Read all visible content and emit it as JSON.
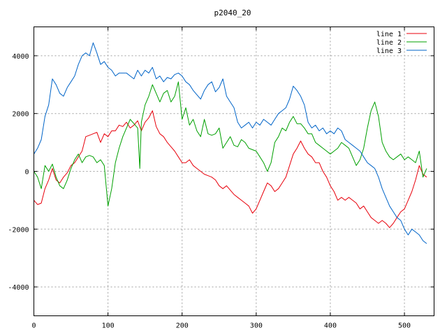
{
  "chart_data": {
    "type": "line",
    "title": "p2040_20",
    "xlabel": "",
    "ylabel": "",
    "xlim": [
      0,
      540
    ],
    "ylim": [
      -5000,
      5000
    ],
    "xticks": [
      0,
      100,
      200,
      300,
      400,
      500
    ],
    "yticks": [
      -4000,
      -2000,
      0,
      2000,
      4000
    ],
    "grid": true,
    "legend_position": "top-right",
    "series": [
      {
        "name": "line 1",
        "color": "#e8000b",
        "points": [
          [
            0,
            -1000
          ],
          [
            5,
            -1150
          ],
          [
            10,
            -1100
          ],
          [
            15,
            -600
          ],
          [
            20,
            -300
          ],
          [
            25,
            100
          ],
          [
            30,
            -300
          ],
          [
            35,
            -400
          ],
          [
            40,
            -200
          ],
          [
            45,
            -50
          ],
          [
            50,
            200
          ],
          [
            55,
            300
          ],
          [
            60,
            500
          ],
          [
            65,
            700
          ],
          [
            70,
            1200
          ],
          [
            75,
            1250
          ],
          [
            80,
            1300
          ],
          [
            85,
            1350
          ],
          [
            90,
            1000
          ],
          [
            95,
            1300
          ],
          [
            100,
            1200
          ],
          [
            105,
            1400
          ],
          [
            110,
            1400
          ],
          [
            115,
            1600
          ],
          [
            120,
            1550
          ],
          [
            125,
            1700
          ],
          [
            130,
            1500
          ],
          [
            135,
            1600
          ],
          [
            140,
            1750
          ],
          [
            145,
            1400
          ],
          [
            150,
            1700
          ],
          [
            155,
            1850
          ],
          [
            160,
            2100
          ],
          [
            165,
            1550
          ],
          [
            170,
            1300
          ],
          [
            175,
            1200
          ],
          [
            180,
            1000
          ],
          [
            185,
            850
          ],
          [
            190,
            700
          ],
          [
            195,
            500
          ],
          [
            200,
            300
          ],
          [
            205,
            300
          ],
          [
            210,
            400
          ],
          [
            215,
            200
          ],
          [
            220,
            100
          ],
          [
            225,
            0
          ],
          [
            230,
            -100
          ],
          [
            235,
            -150
          ],
          [
            240,
            -200
          ],
          [
            245,
            -300
          ],
          [
            250,
            -500
          ],
          [
            255,
            -600
          ],
          [
            260,
            -500
          ],
          [
            265,
            -650
          ],
          [
            270,
            -800
          ],
          [
            275,
            -900
          ],
          [
            280,
            -1000
          ],
          [
            285,
            -1100
          ],
          [
            290,
            -1200
          ],
          [
            295,
            -1450
          ],
          [
            300,
            -1300
          ],
          [
            305,
            -1000
          ],
          [
            310,
            -700
          ],
          [
            315,
            -400
          ],
          [
            320,
            -500
          ],
          [
            325,
            -700
          ],
          [
            330,
            -600
          ],
          [
            335,
            -400
          ],
          [
            340,
            -200
          ],
          [
            345,
            200
          ],
          [
            350,
            600
          ],
          [
            355,
            800
          ],
          [
            360,
            1050
          ],
          [
            365,
            800
          ],
          [
            370,
            600
          ],
          [
            375,
            500
          ],
          [
            380,
            300
          ],
          [
            385,
            300
          ],
          [
            390,
            0
          ],
          [
            395,
            -200
          ],
          [
            400,
            -500
          ],
          [
            405,
            -700
          ],
          [
            410,
            -1000
          ],
          [
            415,
            -900
          ],
          [
            420,
            -1000
          ],
          [
            425,
            -900
          ],
          [
            430,
            -1000
          ],
          [
            435,
            -1100
          ],
          [
            440,
            -1300
          ],
          [
            445,
            -1200
          ],
          [
            450,
            -1400
          ],
          [
            455,
            -1600
          ],
          [
            460,
            -1700
          ],
          [
            465,
            -1800
          ],
          [
            470,
            -1700
          ],
          [
            475,
            -1800
          ],
          [
            480,
            -1950
          ],
          [
            485,
            -1800
          ],
          [
            490,
            -1600
          ],
          [
            495,
            -1400
          ],
          [
            500,
            -1300
          ],
          [
            505,
            -1000
          ],
          [
            510,
            -700
          ],
          [
            515,
            -300
          ],
          [
            520,
            200
          ],
          [
            525,
            -100
          ],
          [
            530,
            -200
          ]
        ]
      },
      {
        "name": "line 2",
        "color": "#00a000",
        "points": [
          [
            0,
            0
          ],
          [
            5,
            -200
          ],
          [
            10,
            -600
          ],
          [
            15,
            200
          ],
          [
            20,
            0
          ],
          [
            25,
            250
          ],
          [
            30,
            -200
          ],
          [
            35,
            -500
          ],
          [
            40,
            -600
          ],
          [
            45,
            -300
          ],
          [
            50,
            100
          ],
          [
            55,
            400
          ],
          [
            60,
            600
          ],
          [
            65,
            300
          ],
          [
            70,
            500
          ],
          [
            75,
            550
          ],
          [
            80,
            500
          ],
          [
            85,
            300
          ],
          [
            90,
            400
          ],
          [
            95,
            200
          ],
          [
            100,
            -1200
          ],
          [
            105,
            -600
          ],
          [
            110,
            300
          ],
          [
            115,
            800
          ],
          [
            120,
            1200
          ],
          [
            125,
            1500
          ],
          [
            130,
            1800
          ],
          [
            135,
            1650
          ],
          [
            140,
            1500
          ],
          [
            143,
            100
          ],
          [
            145,
            1700
          ],
          [
            150,
            2300
          ],
          [
            155,
            2600
          ],
          [
            160,
            3000
          ],
          [
            165,
            2700
          ],
          [
            170,
            2400
          ],
          [
            175,
            2700
          ],
          [
            180,
            2800
          ],
          [
            185,
            2400
          ],
          [
            190,
            2600
          ],
          [
            195,
            3100
          ],
          [
            200,
            1800
          ],
          [
            205,
            2200
          ],
          [
            210,
            1600
          ],
          [
            215,
            1800
          ],
          [
            220,
            1400
          ],
          [
            225,
            1200
          ],
          [
            230,
            1800
          ],
          [
            235,
            1300
          ],
          [
            240,
            1250
          ],
          [
            245,
            1300
          ],
          [
            250,
            1500
          ],
          [
            255,
            800
          ],
          [
            260,
            1000
          ],
          [
            265,
            1200
          ],
          [
            270,
            900
          ],
          [
            275,
            850
          ],
          [
            280,
            1100
          ],
          [
            285,
            1000
          ],
          [
            290,
            800
          ],
          [
            295,
            750
          ],
          [
            300,
            700
          ],
          [
            305,
            500
          ],
          [
            310,
            300
          ],
          [
            315,
            0
          ],
          [
            320,
            300
          ],
          [
            325,
            1000
          ],
          [
            330,
            1200
          ],
          [
            335,
            1500
          ],
          [
            340,
            1400
          ],
          [
            345,
            1700
          ],
          [
            350,
            1900
          ],
          [
            355,
            1650
          ],
          [
            360,
            1650
          ],
          [
            365,
            1500
          ],
          [
            370,
            1300
          ],
          [
            375,
            1300
          ],
          [
            380,
            1000
          ],
          [
            385,
            900
          ],
          [
            390,
            800
          ],
          [
            395,
            700
          ],
          [
            400,
            600
          ],
          [
            405,
            700
          ],
          [
            410,
            800
          ],
          [
            415,
            1000
          ],
          [
            420,
            900
          ],
          [
            425,
            800
          ],
          [
            430,
            500
          ],
          [
            435,
            200
          ],
          [
            440,
            400
          ],
          [
            445,
            800
          ],
          [
            450,
            1500
          ],
          [
            455,
            2100
          ],
          [
            460,
            2400
          ],
          [
            465,
            1900
          ],
          [
            470,
            1000
          ],
          [
            475,
            700
          ],
          [
            480,
            500
          ],
          [
            485,
            400
          ],
          [
            490,
            500
          ],
          [
            495,
            600
          ],
          [
            500,
            400
          ],
          [
            505,
            500
          ],
          [
            510,
            400
          ],
          [
            515,
            300
          ],
          [
            520,
            700
          ],
          [
            525,
            -200
          ],
          [
            530,
            100
          ]
        ]
      },
      {
        "name": "line 3",
        "color": "#0064c8",
        "points": [
          [
            0,
            600
          ],
          [
            5,
            800
          ],
          [
            10,
            1100
          ],
          [
            15,
            1900
          ],
          [
            20,
            2300
          ],
          [
            25,
            3200
          ],
          [
            30,
            3000
          ],
          [
            35,
            2700
          ],
          [
            40,
            2600
          ],
          [
            45,
            2900
          ],
          [
            50,
            3100
          ],
          [
            55,
            3300
          ],
          [
            60,
            3700
          ],
          [
            65,
            4000
          ],
          [
            70,
            4100
          ],
          [
            75,
            4000
          ],
          [
            80,
            4450
          ],
          [
            85,
            4100
          ],
          [
            90,
            3700
          ],
          [
            95,
            3800
          ],
          [
            100,
            3600
          ],
          [
            105,
            3500
          ],
          [
            110,
            3300
          ],
          [
            115,
            3400
          ],
          [
            120,
            3400
          ],
          [
            125,
            3400
          ],
          [
            130,
            3300
          ],
          [
            135,
            3200
          ],
          [
            140,
            3500
          ],
          [
            145,
            3300
          ],
          [
            150,
            3500
          ],
          [
            155,
            3400
          ],
          [
            160,
            3600
          ],
          [
            165,
            3200
          ],
          [
            170,
            3300
          ],
          [
            175,
            3100
          ],
          [
            180,
            3250
          ],
          [
            185,
            3200
          ],
          [
            190,
            3350
          ],
          [
            195,
            3400
          ],
          [
            200,
            3300
          ],
          [
            205,
            3100
          ],
          [
            210,
            3000
          ],
          [
            215,
            2800
          ],
          [
            220,
            2650
          ],
          [
            225,
            2500
          ],
          [
            230,
            2800
          ],
          [
            235,
            3000
          ],
          [
            240,
            3100
          ],
          [
            245,
            2750
          ],
          [
            250,
            2900
          ],
          [
            255,
            3200
          ],
          [
            260,
            2600
          ],
          [
            265,
            2400
          ],
          [
            270,
            2200
          ],
          [
            275,
            1700
          ],
          [
            280,
            1500
          ],
          [
            285,
            1600
          ],
          [
            290,
            1700
          ],
          [
            295,
            1500
          ],
          [
            300,
            1700
          ],
          [
            305,
            1600
          ],
          [
            310,
            1800
          ],
          [
            315,
            1700
          ],
          [
            320,
            1600
          ],
          [
            325,
            1800
          ],
          [
            330,
            2000
          ],
          [
            335,
            2100
          ],
          [
            340,
            2200
          ],
          [
            345,
            2500
          ],
          [
            350,
            2950
          ],
          [
            355,
            2800
          ],
          [
            360,
            2600
          ],
          [
            365,
            2300
          ],
          [
            370,
            1700
          ],
          [
            375,
            1500
          ],
          [
            380,
            1600
          ],
          [
            385,
            1400
          ],
          [
            390,
            1500
          ],
          [
            395,
            1300
          ],
          [
            400,
            1400
          ],
          [
            405,
            1300
          ],
          [
            410,
            1500
          ],
          [
            415,
            1400
          ],
          [
            420,
            1100
          ],
          [
            425,
            1000
          ],
          [
            430,
            900
          ],
          [
            435,
            800
          ],
          [
            440,
            700
          ],
          [
            445,
            500
          ],
          [
            450,
            300
          ],
          [
            455,
            200
          ],
          [
            460,
            100
          ],
          [
            465,
            -200
          ],
          [
            470,
            -600
          ],
          [
            475,
            -900
          ],
          [
            480,
            -1200
          ],
          [
            485,
            -1400
          ],
          [
            490,
            -1600
          ],
          [
            495,
            -1700
          ],
          [
            500,
            -2000
          ],
          [
            505,
            -2200
          ],
          [
            510,
            -2000
          ],
          [
            515,
            -2100
          ],
          [
            520,
            -2200
          ],
          [
            525,
            -2400
          ],
          [
            530,
            -2500
          ]
        ]
      }
    ]
  }
}
